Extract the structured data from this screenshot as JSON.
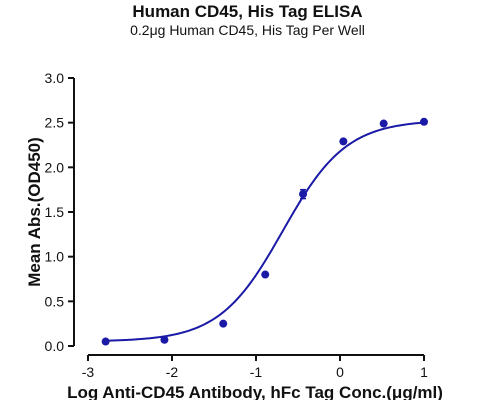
{
  "chart_data": {
    "type": "scatter",
    "title": "Human CD45, His Tag ELISA",
    "subtitle": "0.2μg Human CD45, His Tag Per Well",
    "xlabel": "Log Anti-CD45 Antibody, hFc Tag Conc.(μg/ml)",
    "ylabel": "Mean Abs.(OD450)",
    "xlim": [
      -3,
      1
    ],
    "ylim": [
      0,
      3.0
    ],
    "xticks": [
      "-3",
      "-2",
      "-1",
      "0",
      "1"
    ],
    "yticks": [
      "0.0",
      "0.5",
      "1.0",
      "1.5",
      "2.0",
      "2.5",
      "3.0"
    ],
    "grid": false,
    "series": [
      {
        "x": [
          -2.79,
          -2.09,
          -1.39,
          -0.89,
          -0.44,
          0.04,
          0.52,
          1.0
        ],
        "y": [
          0.05,
          0.07,
          0.25,
          0.8,
          1.7,
          2.29,
          2.49,
          2.51
        ],
        "error": [
          0,
          0,
          0,
          0,
          0.05,
          0,
          0,
          0
        ]
      }
    ],
    "fit": {
      "type": "4PL",
      "bottom": 0.05,
      "top": 2.53,
      "logEC50": -0.68,
      "hill": 1.15
    },
    "color": "#1a1aa6"
  }
}
